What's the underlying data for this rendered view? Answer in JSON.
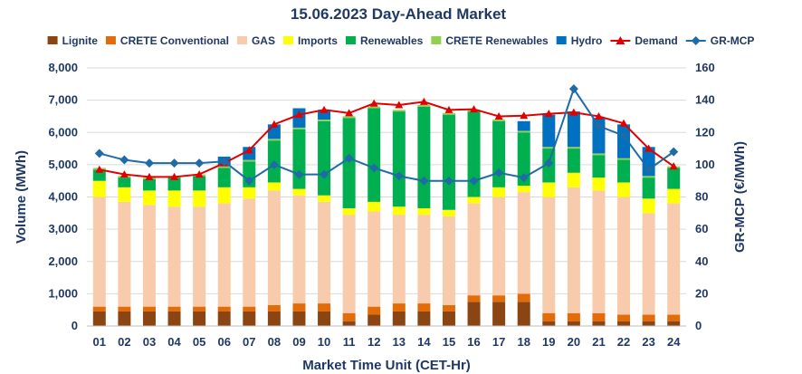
{
  "chart_data": {
    "type": "bar",
    "title": "15.06.2023  Day-Ahead Market",
    "xlabel": "Market Time Unit (CET-Hr)",
    "ylabel": "Volume (MWh)",
    "y2label": "GR-MCP (€/MWh)",
    "ylim": [
      0,
      8000
    ],
    "y2lim": [
      0,
      160
    ],
    "yticks": [
      "0",
      "1,000",
      "2,000",
      "3,000",
      "4,000",
      "5,000",
      "6,000",
      "7,000",
      "8,000"
    ],
    "y2ticks": [
      "0",
      "20",
      "40",
      "60",
      "80",
      "100",
      "120",
      "140",
      "160"
    ],
    "categories": [
      "01",
      "02",
      "03",
      "04",
      "05",
      "06",
      "07",
      "08",
      "09",
      "10",
      "11",
      "12",
      "13",
      "14",
      "15",
      "16",
      "17",
      "18",
      "19",
      "20",
      "21",
      "22",
      "23",
      "24"
    ],
    "stacked_series": [
      {
        "name": "Lignite",
        "color": "#8b4513",
        "values": [
          450,
          450,
          450,
          450,
          450,
          450,
          450,
          450,
          450,
          450,
          150,
          350,
          450,
          450,
          450,
          750,
          750,
          750,
          150,
          150,
          150,
          150,
          150,
          150
        ]
      },
      {
        "name": "CRETE Conventional",
        "color": "#e36c09",
        "values": [
          150,
          150,
          150,
          150,
          150,
          150,
          150,
          200,
          250,
          250,
          250,
          250,
          250,
          250,
          200,
          200,
          200,
          250,
          250,
          250,
          250,
          200,
          200,
          200
        ]
      },
      {
        "name": "GAS",
        "color": "#f8cbad",
        "values": [
          3400,
          3250,
          3150,
          3100,
          3100,
          3200,
          3350,
          3550,
          3350,
          3150,
          3050,
          2950,
          2750,
          2750,
          2750,
          2850,
          3050,
          3150,
          3600,
          3900,
          3800,
          3650,
          3150,
          3450
        ]
      },
      {
        "name": "Imports",
        "color": "#ffff00",
        "values": [
          500,
          450,
          450,
          500,
          500,
          500,
          350,
          250,
          200,
          200,
          200,
          300,
          250,
          200,
          200,
          200,
          300,
          200,
          450,
          450,
          400,
          450,
          450,
          450
        ]
      },
      {
        "name": "Renewables",
        "color": "#00b050",
        "values": [
          350,
          300,
          350,
          400,
          450,
          600,
          800,
          1300,
          1850,
          2300,
          2800,
          2900,
          2950,
          3150,
          2950,
          2650,
          2050,
          1650,
          1050,
          750,
          700,
          700,
          650,
          650
        ]
      },
      {
        "name": "CRETE Renewables",
        "color": "#92d050",
        "values": [
          50,
          50,
          50,
          50,
          50,
          50,
          50,
          50,
          50,
          50,
          50,
          50,
          50,
          50,
          50,
          50,
          50,
          50,
          50,
          50,
          50,
          50,
          50,
          50
        ]
      },
      {
        "name": "Hydro",
        "color": "#0070c0",
        "values": [
          0,
          0,
          0,
          0,
          0,
          300,
          400,
          450,
          600,
          300,
          0,
          0,
          0,
          0,
          0,
          0,
          0,
          300,
          1000,
          1100,
          1100,
          1050,
          900,
          0
        ]
      }
    ],
    "line_series": [
      {
        "name": "Demand",
        "axis": "left",
        "color": "#e00000",
        "marker": "triangle",
        "values": [
          4850,
          4700,
          4620,
          4620,
          4700,
          5050,
          5450,
          6250,
          6550,
          6700,
          6600,
          6900,
          6850,
          6950,
          6700,
          6720,
          6500,
          6520,
          6580,
          6620,
          6500,
          6280,
          5500,
          4950
        ]
      },
      {
        "name": "GR-MCP",
        "axis": "right",
        "color": "#1f6ba5",
        "marker": "diamond",
        "values": [
          107,
          103,
          101,
          101,
          101,
          102,
          90,
          100,
          94,
          94,
          104,
          98,
          93,
          90,
          90,
          90,
          95,
          92,
          101,
          147,
          124,
          118,
          97,
          108
        ]
      }
    ],
    "legend": [
      "Lignite",
      "CRETE Conventional",
      "GAS",
      "Imports",
      "Renewables",
      "CRETE Renewables",
      "Hydro",
      "Demand",
      "GR-MCP"
    ],
    "legend_position": "top"
  }
}
